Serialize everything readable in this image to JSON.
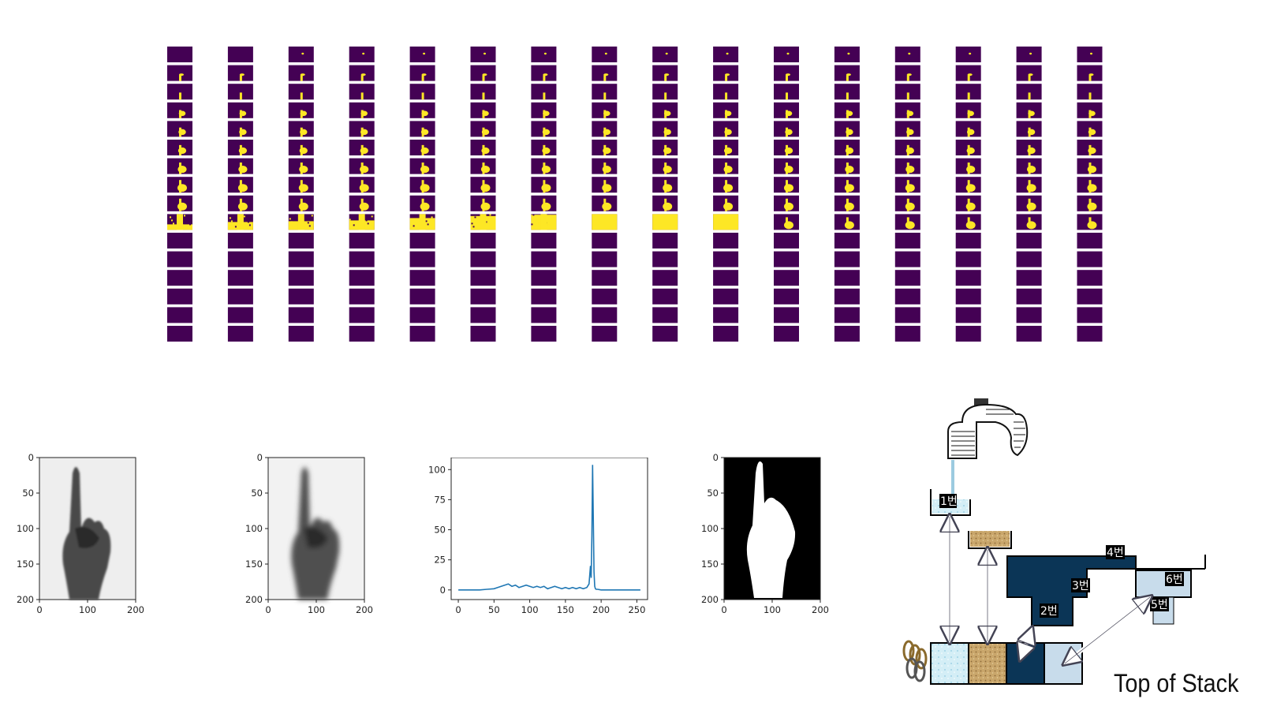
{
  "threshold_grid": {
    "columns": 16,
    "rows": 16,
    "background_color": "#440154",
    "foreground_color": "#fde725",
    "hand_fill_rows_per_column": [
      9,
      9,
      9,
      9,
      9,
      9,
      9,
      9,
      9,
      9,
      9,
      9,
      9,
      9,
      9,
      9
    ],
    "saturated_row_fill_per_column": [
      0.35,
      0.5,
      0.55,
      0.6,
      0.75,
      0.88,
      0.96,
      1.0,
      1.0,
      1.0,
      0,
      0,
      0,
      0,
      0,
      0
    ]
  },
  "image_panels": [
    {
      "name": "original-grayscale",
      "x_ticks": [
        "0",
        "100",
        "200"
      ],
      "y_ticks": [
        "0",
        "50",
        "100",
        "150",
        "200"
      ]
    },
    {
      "name": "blurred-grayscale",
      "x_ticks": [
        "0",
        "100",
        "200"
      ],
      "y_ticks": [
        "0",
        "50",
        "100",
        "150",
        "200"
      ]
    },
    {
      "name": "binary-mask",
      "x_ticks": [
        "0",
        "100",
        "200"
      ],
      "y_ticks": [
        "0",
        "50",
        "100",
        "150",
        "200"
      ]
    }
  ],
  "chart_data": {
    "type": "line",
    "title": "",
    "xlabel": "",
    "ylabel": "",
    "xlim": [
      0,
      255
    ],
    "ylim": [
      0,
      105
    ],
    "x_ticks": [
      "0",
      "50",
      "100",
      "150",
      "200",
      "250"
    ],
    "y_ticks": [
      "0",
      "25",
      "50",
      "75",
      "100"
    ],
    "line_color": "#1f77b4",
    "series": [
      {
        "x": [
          0,
          10,
          20,
          30,
          40,
          50,
          55,
          60,
          65,
          70,
          75,
          80,
          85,
          90,
          95,
          100,
          105,
          110,
          115,
          120,
          125,
          130,
          135,
          140,
          145,
          150,
          155,
          160,
          165,
          170,
          175,
          180,
          183,
          185,
          186,
          187,
          188,
          189,
          190,
          191,
          192,
          193,
          195,
          200,
          210,
          220,
          230,
          240,
          250,
          255
        ],
        "values": [
          0,
          0,
          0,
          0,
          0.5,
          1,
          2,
          3,
          4,
          5,
          3,
          4,
          2,
          3,
          4,
          3,
          2,
          3,
          2,
          3,
          1,
          2,
          3,
          2,
          1,
          2,
          1,
          2,
          1,
          2,
          1,
          2,
          5,
          20,
          10,
          45,
          104,
          60,
          15,
          3,
          1,
          0.5,
          0.5,
          0,
          0,
          0,
          0,
          0,
          0,
          0
        ]
      }
    ]
  },
  "stack_diagram": {
    "labels": [
      "1번",
      "2번",
      "3번",
      "4번",
      "5번",
      "6번"
    ],
    "caption": "Top of Stack"
  }
}
